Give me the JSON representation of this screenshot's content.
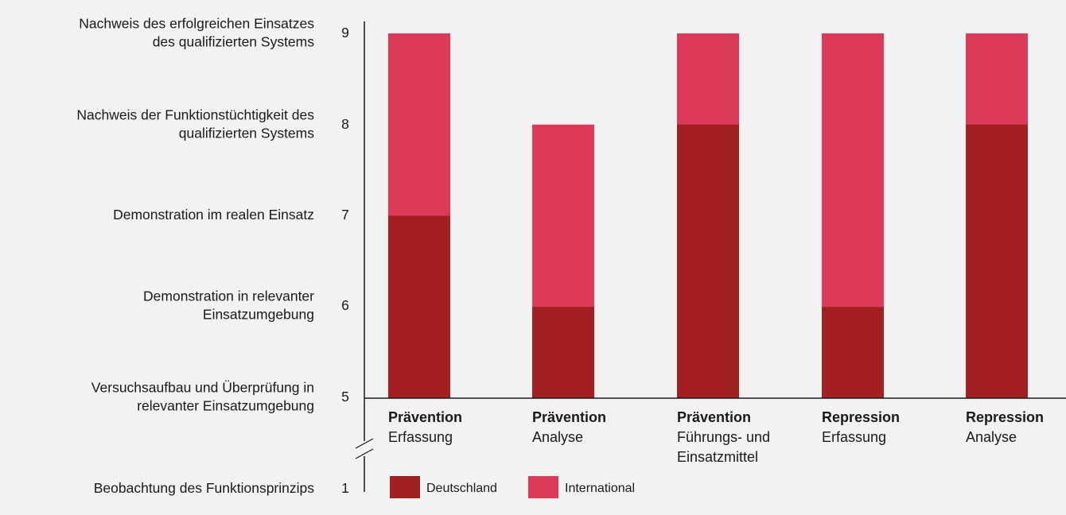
{
  "chart_data": {
    "type": "bar",
    "stacked": true,
    "categories": [
      {
        "bold": "Prävention",
        "lines": [
          "Erfassung"
        ]
      },
      {
        "bold": "Prävention",
        "lines": [
          "Analyse"
        ]
      },
      {
        "bold": "Prävention",
        "lines": [
          "Führungs- und",
          "Einsatzmittel"
        ]
      },
      {
        "bold": "Repression",
        "lines": [
          "Erfassung"
        ]
      },
      {
        "bold": "Repression",
        "lines": [
          "Analyse"
        ]
      }
    ],
    "series": [
      {
        "name": "Deutschland",
        "color": "#a21f22",
        "values": [
          7,
          6,
          8,
          6,
          8
        ]
      },
      {
        "name": "International",
        "color": "#db3b58",
        "values": [
          9,
          8,
          9,
          9,
          9
        ]
      }
    ],
    "y_ticks": [
      "9",
      "8",
      "7",
      "6",
      "5",
      "1"
    ],
    "y_level_labels": [
      {
        "level": "9",
        "lines": [
          "Nachweis des erfolgreichen Einsatzes",
          "des qualifizierten Systems"
        ]
      },
      {
        "level": "8",
        "lines": [
          "Nachweis der Funktionstüchtigkeit des",
          "qualifizierten Systems"
        ]
      },
      {
        "level": "7",
        "lines": [
          "Demonstration im realen Einsatz"
        ]
      },
      {
        "level": "6",
        "lines": [
          "Demonstration in relevanter",
          "Einsatzumgebung"
        ]
      },
      {
        "level": "5",
        "lines": [
          "Versuchsaufbau und Überprüfung in",
          "relevanter Einsatzumgebung"
        ]
      },
      {
        "level": "1",
        "lines": [
          "Beobachtung des Funktionsprinzips"
        ]
      }
    ],
    "ylim": [
      5,
      9
    ],
    "axis_break": true,
    "legend_position": "bottom-left"
  }
}
